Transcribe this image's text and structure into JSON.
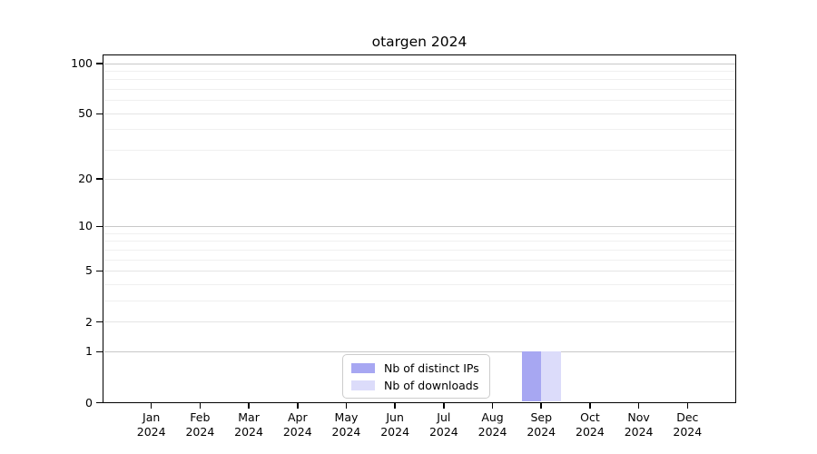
{
  "page": {
    "background_color": "#ffffff"
  },
  "chart_data": {
    "type": "bar",
    "title": "otargen 2024",
    "x_year": "2024",
    "categories": [
      "Jan",
      "Feb",
      "Mar",
      "Apr",
      "May",
      "Jun",
      "Jul",
      "Aug",
      "Sep",
      "Oct",
      "Nov",
      "Dec"
    ],
    "series": [
      {
        "name": "Nb of distinct IPs",
        "color": "#a7a7f2",
        "values": [
          0,
          0,
          0,
          0,
          0,
          0,
          0,
          0,
          1,
          0,
          0,
          0
        ]
      },
      {
        "name": "Nb of downloads",
        "color": "#dcdcfa",
        "values": [
          0,
          0,
          0,
          0,
          0,
          0,
          0,
          0,
          1,
          0,
          0,
          0
        ]
      }
    ],
    "xlabel": "",
    "ylabel": "",
    "y_axis": {
      "scale": "log1p",
      "tick_values": [
        0,
        1,
        2,
        5,
        10,
        20,
        50,
        100
      ],
      "minor_gridline_values": [
        3,
        4,
        6,
        7,
        8,
        9,
        30,
        40,
        60,
        70,
        80,
        90
      ],
      "top_value": 114
    },
    "grid": {
      "decade_color": "#c8c8c8",
      "labeled_color": "#e4e4e4",
      "minor_color": "#f0f0f0"
    },
    "axis_color": "#000000",
    "legend": {
      "position": "lower center",
      "border_color": "#cccccc"
    }
  }
}
